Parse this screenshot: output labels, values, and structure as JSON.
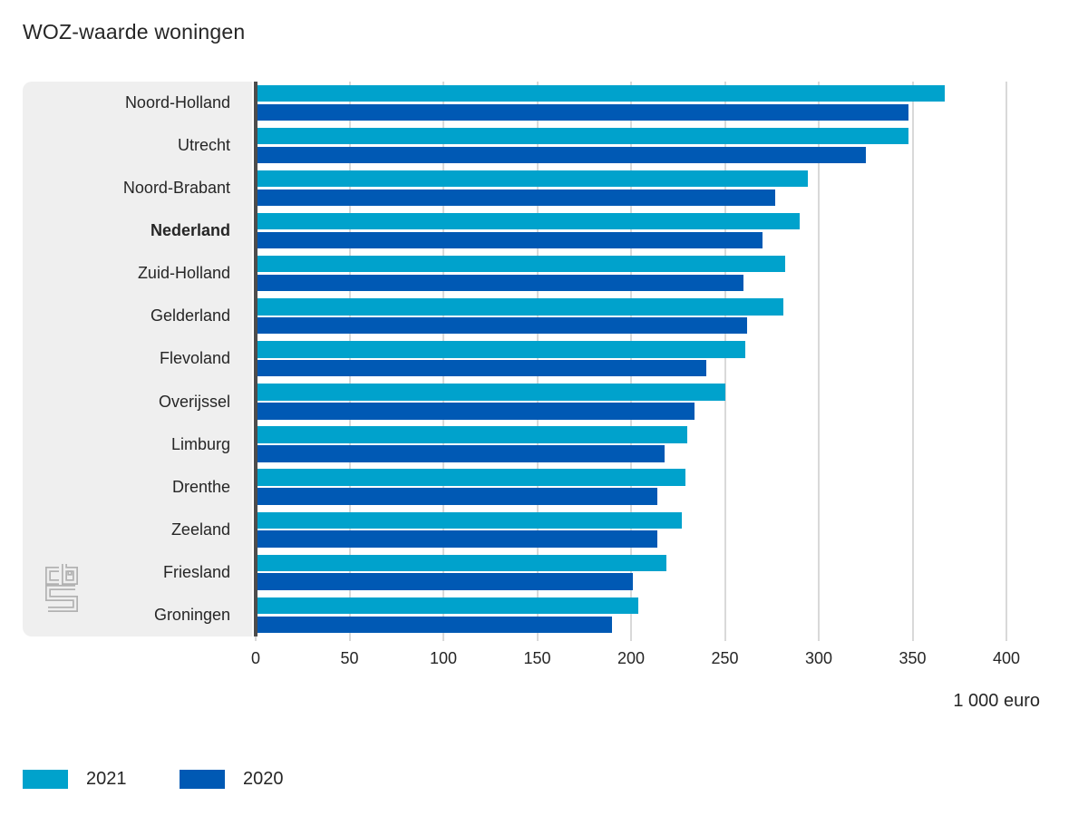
{
  "title": "WOZ-waarde woningen",
  "chart_data": {
    "type": "bar",
    "orientation": "horizontal",
    "title": "WOZ-waarde woningen",
    "unit_label": "1 000 euro",
    "categories": [
      "Noord-Holland",
      "Utrecht",
      "Noord-Brabant",
      "Nederland",
      "Zuid-Holland",
      "Gelderland",
      "Flevoland",
      "Overijssel",
      "Limburg",
      "Drenthe",
      "Zeeland",
      "Friesland",
      "Groningen"
    ],
    "emphasized_category": "Nederland",
    "series": [
      {
        "name": "2021",
        "color": "#00a2cc",
        "values": [
          367,
          348,
          294,
          290,
          282,
          281,
          261,
          250,
          230,
          229,
          227,
          219,
          204
        ]
      },
      {
        "name": "2020",
        "color": "#0059b4",
        "values": [
          348,
          325,
          277,
          270,
          260,
          262,
          240,
          234,
          218,
          214,
          214,
          201,
          190
        ]
      }
    ],
    "x_axis": {
      "min": 0,
      "max": 400,
      "ticks": [
        0,
        50,
        100,
        150,
        200,
        250,
        300,
        350,
        400
      ],
      "grid": true
    },
    "legend_position": "bottom-left"
  },
  "colors": {
    "background": "#ffffff",
    "panel": "#efefef",
    "axis_line": "#4d4d4d",
    "gridline": "#d9d9d9",
    "text": "#262626",
    "logo": "#b2b2b2"
  },
  "logo": {
    "name": "cbs-logo"
  }
}
